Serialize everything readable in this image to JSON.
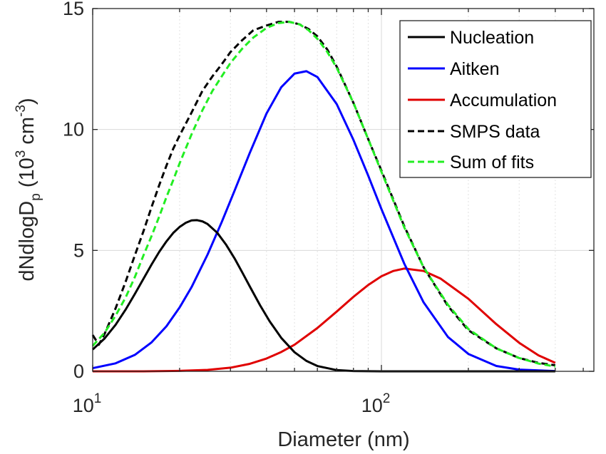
{
  "chart_data": {
    "type": "line",
    "xlabel": "Diameter (nm)",
    "ylabel_parts": [
      "dNdlogD",
      "p",
      " (10",
      "3",
      " cm",
      "-3",
      ")"
    ],
    "x_scale": "log",
    "xlim": [
      10,
      500
    ],
    "ylim": [
      0,
      15
    ],
    "yticks": [
      0,
      5,
      10,
      15
    ],
    "ytick_labels": [
      "0",
      "5",
      "10",
      "15"
    ],
    "xticks": [
      10,
      100
    ],
    "xtick_labels": [
      {
        "base": "10",
        "exp": "1"
      },
      {
        "base": "10",
        "exp": "2"
      }
    ],
    "grid": true,
    "legend_position": "top-right",
    "series": [
      {
        "name": "Nucleation",
        "color": "#000000",
        "style": "solid",
        "x": [
          10,
          11,
          12,
          13,
          14,
          15,
          16,
          17,
          18,
          19,
          20,
          21,
          22,
          23,
          24,
          25,
          27,
          29,
          31,
          33,
          35,
          38,
          41,
          45,
          50,
          55,
          60,
          70,
          80,
          100,
          130,
          200,
          300,
          400
        ],
        "y": [
          0.9,
          1.36,
          1.92,
          2.55,
          3.2,
          3.83,
          4.42,
          4.94,
          5.37,
          5.72,
          5.97,
          6.14,
          6.24,
          6.25,
          6.2,
          6.09,
          5.73,
          5.23,
          4.67,
          4.08,
          3.51,
          2.73,
          2.07,
          1.38,
          0.79,
          0.43,
          0.22,
          0.05,
          0.01,
          0.0,
          0.0,
          0.0,
          0.0,
          0.0
        ]
      },
      {
        "name": "Aitken",
        "color": "#0000ff",
        "style": "solid",
        "x": [
          10,
          12,
          14,
          16,
          18,
          20,
          22,
          25,
          28,
          31,
          35,
          40,
          45,
          50,
          55,
          60,
          70,
          80,
          90,
          100,
          120,
          140,
          170,
          200,
          250,
          300,
          400
        ],
        "y": [
          0.13,
          0.33,
          0.68,
          1.2,
          1.86,
          2.64,
          3.48,
          4.83,
          6.18,
          7.47,
          9.03,
          10.66,
          11.75,
          12.31,
          12.41,
          12.17,
          11.05,
          9.57,
          8.09,
          6.71,
          4.45,
          2.85,
          1.42,
          0.72,
          0.22,
          0.07,
          0.01
        ]
      },
      {
        "name": "Accumulation",
        "color": "#e00000",
        "style": "solid",
        "x": [
          10,
          15,
          20,
          25,
          30,
          35,
          40,
          45,
          50,
          60,
          70,
          80,
          90,
          100,
          110,
          120,
          140,
          160,
          200,
          250,
          300,
          350,
          400
        ],
        "y": [
          0.0,
          0.0,
          0.02,
          0.06,
          0.15,
          0.31,
          0.53,
          0.8,
          1.1,
          1.79,
          2.47,
          3.08,
          3.57,
          3.93,
          4.15,
          4.25,
          4.15,
          3.84,
          3.0,
          1.95,
          1.18,
          0.66,
          0.35
        ]
      },
      {
        "name": "SMPS data",
        "color": "#000000",
        "style": "dashed",
        "x": [
          10,
          10.5,
          11,
          12,
          13,
          14,
          15,
          16,
          17,
          18,
          19,
          20,
          22,
          24,
          26,
          28,
          30,
          33,
          36,
          40,
          44,
          48,
          52,
          56,
          60,
          65,
          70,
          80,
          90,
          100,
          120,
          140,
          170,
          200,
          250,
          300,
          350,
          400
        ],
        "y": [
          1.5,
          1.1,
          1.55,
          2.6,
          3.7,
          4.8,
          5.8,
          6.8,
          7.7,
          8.5,
          9.2,
          9.75,
          10.7,
          11.6,
          12.2,
          12.7,
          13.2,
          13.7,
          14.1,
          14.3,
          14.45,
          14.45,
          14.35,
          14.15,
          13.85,
          13.3,
          12.6,
          11.1,
          9.6,
          8.3,
          6.0,
          4.3,
          2.7,
          1.7,
          0.95,
          0.55,
          0.35,
          0.25
        ]
      },
      {
        "name": "Sum of fits",
        "color": "#22ee22",
        "style": "dashed",
        "x": [
          10,
          11,
          12,
          13,
          14,
          15,
          16,
          17,
          18,
          19,
          20,
          22,
          24,
          26,
          28,
          30,
          33,
          36,
          40,
          44,
          48,
          52,
          56,
          60,
          65,
          70,
          80,
          90,
          100,
          120,
          140,
          170,
          200,
          250,
          300,
          350,
          400
        ],
        "y": [
          1.05,
          1.6,
          2.3,
          3.05,
          3.9,
          4.8,
          5.6,
          6.4,
          7.2,
          7.9,
          8.6,
          9.8,
          10.8,
          11.6,
          12.2,
          12.75,
          13.35,
          13.8,
          14.2,
          14.4,
          14.45,
          14.35,
          14.1,
          13.75,
          13.2,
          12.55,
          11.1,
          9.6,
          8.25,
          5.95,
          4.3,
          2.75,
          1.75,
          0.95,
          0.55,
          0.32,
          0.2
        ]
      }
    ]
  }
}
